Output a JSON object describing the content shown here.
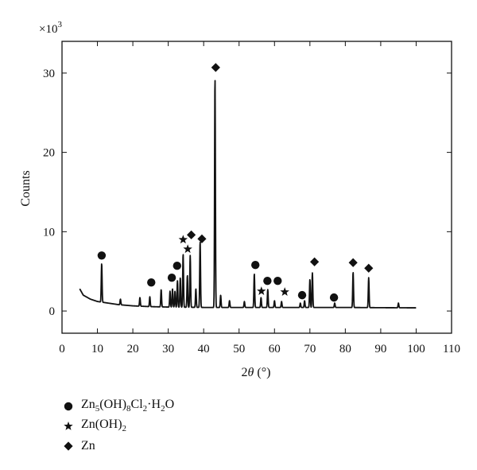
{
  "chart_data": {
    "type": "line",
    "multiplier_label": "×10",
    "multiplier_exp": "3",
    "xlabel_prefix": "2",
    "xlabel_symbol": "θ",
    "xlabel_unit": " (°)",
    "ylabel": "Counts",
    "xlim": [
      0,
      110
    ],
    "ylim": [
      -2.8,
      34
    ],
    "xticks": [
      0,
      10,
      20,
      30,
      40,
      50,
      60,
      70,
      80,
      90,
      100,
      110
    ],
    "yticks": [
      0,
      10,
      20,
      30
    ],
    "grid": false,
    "background": [
      [
        5,
        2.8
      ],
      [
        6,
        2.0
      ],
      [
        8,
        1.5
      ],
      [
        10,
        1.2
      ],
      [
        13,
        1.0
      ],
      [
        16,
        0.8
      ],
      [
        20,
        0.65
      ],
      [
        25,
        0.55
      ],
      [
        30,
        0.5
      ],
      [
        40,
        0.45
      ],
      [
        50,
        0.45
      ],
      [
        60,
        0.45
      ],
      [
        70,
        0.45
      ],
      [
        80,
        0.45
      ],
      [
        90,
        0.42
      ],
      [
        100,
        0.4
      ]
    ],
    "peaks": [
      {
        "x": 11.2,
        "y": 6.0
      },
      {
        "x": 16.5,
        "y": 1.5
      },
      {
        "x": 22.0,
        "y": 1.7
      },
      {
        "x": 24.8,
        "y": 1.8
      },
      {
        "x": 28.0,
        "y": 2.7
      },
      {
        "x": 30.5,
        "y": 2.5
      },
      {
        "x": 31.2,
        "y": 2.8
      },
      {
        "x": 31.9,
        "y": 2.5
      },
      {
        "x": 32.6,
        "y": 3.8
      },
      {
        "x": 33.4,
        "y": 4.2
      },
      {
        "x": 34.2,
        "y": 7.2
      },
      {
        "x": 35.4,
        "y": 4.5
      },
      {
        "x": 36.2,
        "y": 7.0
      },
      {
        "x": 37.8,
        "y": 2.8
      },
      {
        "x": 39.0,
        "y": 8.8
      },
      {
        "x": 43.2,
        "y": 29.5
      },
      {
        "x": 44.8,
        "y": 2.0
      },
      {
        "x": 47.3,
        "y": 1.3
      },
      {
        "x": 51.5,
        "y": 1.2
      },
      {
        "x": 54.3,
        "y": 4.7
      },
      {
        "x": 56.2,
        "y": 1.7
      },
      {
        "x": 58.1,
        "y": 2.7
      },
      {
        "x": 60.0,
        "y": 1.3
      },
      {
        "x": 62.0,
        "y": 1.2
      },
      {
        "x": 67.3,
        "y": 1.0
      },
      {
        "x": 68.5,
        "y": 1.3
      },
      {
        "x": 70.0,
        "y": 4.0
      },
      {
        "x": 70.7,
        "y": 4.8
      },
      {
        "x": 77.0,
        "y": 1.0
      },
      {
        "x": 82.2,
        "y": 4.9
      },
      {
        "x": 86.6,
        "y": 4.2
      },
      {
        "x": 95.0,
        "y": 1.0
      }
    ],
    "markers": [
      {
        "type": "circle",
        "x": 11.2,
        "y": 7.0
      },
      {
        "type": "circle",
        "x": 25.2,
        "y": 3.6
      },
      {
        "type": "circle",
        "x": 31.0,
        "y": 4.2
      },
      {
        "type": "circle",
        "x": 32.5,
        "y": 5.7
      },
      {
        "type": "circle",
        "x": 54.6,
        "y": 5.8
      },
      {
        "type": "circle",
        "x": 58.0,
        "y": 3.8
      },
      {
        "type": "circle",
        "x": 60.9,
        "y": 3.8
      },
      {
        "type": "circle",
        "x": 67.8,
        "y": 2.0
      },
      {
        "type": "circle",
        "x": 76.8,
        "y": 1.7
      },
      {
        "type": "star",
        "x": 34.2,
        "y": 9.0
      },
      {
        "type": "star",
        "x": 35.5,
        "y": 7.8
      },
      {
        "type": "star",
        "x": 56.3,
        "y": 2.5
      },
      {
        "type": "star",
        "x": 62.9,
        "y": 2.4
      },
      {
        "type": "diamond",
        "x": 43.4,
        "y": 30.7
      },
      {
        "type": "diamond",
        "x": 36.5,
        "y": 9.6
      },
      {
        "type": "diamond",
        "x": 39.5,
        "y": 9.1
      },
      {
        "type": "diamond",
        "x": 71.3,
        "y": 6.2
      },
      {
        "type": "diamond",
        "x": 82.2,
        "y": 6.1
      },
      {
        "type": "diamond",
        "x": 86.6,
        "y": 5.4
      }
    ],
    "legend": [
      {
        "marker": "circle",
        "parts": [
          [
            "Zn",
            ""
          ],
          [
            "5",
            "sub"
          ],
          [
            "(OH)",
            ""
          ],
          [
            "8",
            "sub"
          ],
          [
            "Cl",
            ""
          ],
          [
            "2",
            "sub"
          ],
          [
            "·H",
            ""
          ],
          [
            "2",
            "sub"
          ],
          [
            "O",
            ""
          ]
        ]
      },
      {
        "marker": "star",
        "parts": [
          [
            "Zn(OH)",
            ""
          ],
          [
            "2",
            "sub"
          ]
        ]
      },
      {
        "marker": "diamond",
        "parts": [
          [
            "Zn",
            ""
          ]
        ]
      }
    ]
  }
}
